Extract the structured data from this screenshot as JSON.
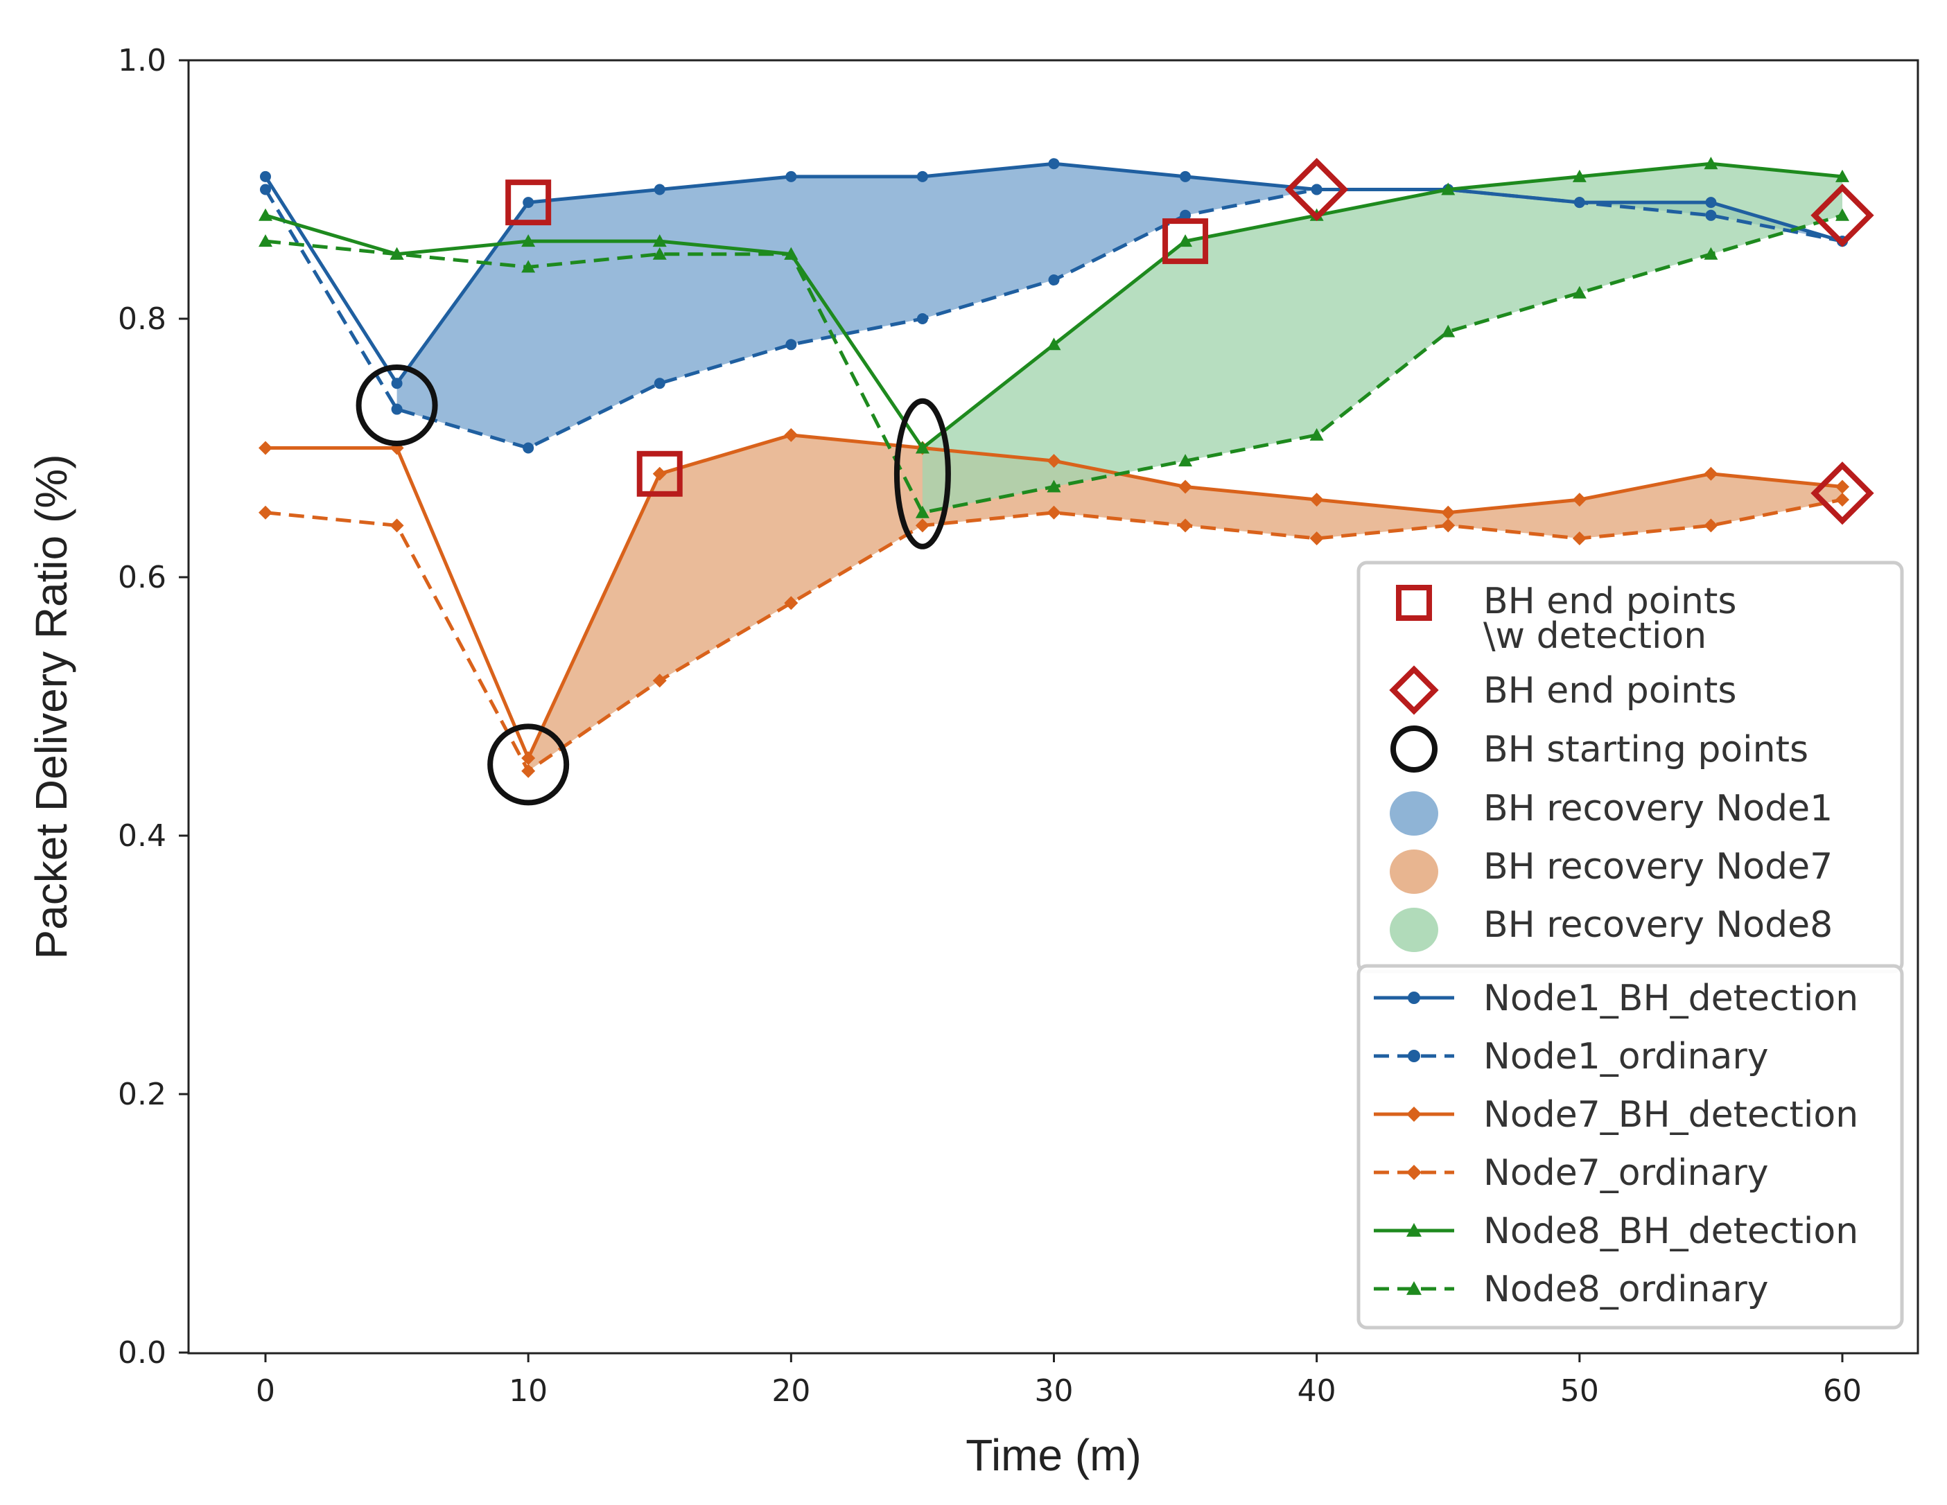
{
  "chart_data": {
    "type": "line",
    "title": "",
    "xlabel": "Time (m)",
    "ylabel": "Packet Delivery Ratio (%)",
    "xlim": [
      -3,
      63
    ],
    "ylim": [
      0.0,
      1.0
    ],
    "xticks": [
      0,
      10,
      20,
      30,
      40,
      50,
      60
    ],
    "yticks": [
      0.0,
      0.2,
      0.4,
      0.6,
      0.8,
      1.0
    ],
    "xtick_labels": [
      "0",
      "10",
      "20",
      "30",
      "40",
      "50",
      "60"
    ],
    "ytick_labels": [
      "0.0",
      "0.2",
      "0.4",
      "0.6",
      "0.8",
      "1.0"
    ],
    "grid": false,
    "legend_position": "lower-right",
    "x": [
      0,
      5,
      10,
      15,
      20,
      25,
      30,
      35,
      40,
      45,
      50,
      55,
      60
    ],
    "series": [
      {
        "name": "Node1_BH_detection",
        "color": "#1f5fa0",
        "style": "solid",
        "marker": "circle",
        "values": [
          0.91,
          0.75,
          0.89,
          0.9,
          0.91,
          0.91,
          0.92,
          0.91,
          0.9,
          0.9,
          0.89,
          0.89,
          0.86
        ]
      },
      {
        "name": "Node1_ordinary",
        "color": "#1f5fa0",
        "style": "dashed",
        "marker": "circle",
        "values": [
          0.9,
          0.73,
          0.7,
          0.75,
          0.78,
          0.8,
          0.83,
          0.88,
          0.9,
          0.9,
          0.89,
          0.88,
          0.86
        ]
      },
      {
        "name": "Node7_BH_detection",
        "color": "#d9621b",
        "style": "solid",
        "marker": "diamond",
        "values": [
          0.7,
          0.7,
          0.46,
          0.68,
          0.71,
          0.7,
          0.69,
          0.67,
          0.66,
          0.65,
          0.66,
          0.68,
          0.67
        ]
      },
      {
        "name": "Node7_ordinary",
        "color": "#d9621b",
        "style": "dashed",
        "marker": "diamond",
        "values": [
          0.65,
          0.64,
          0.45,
          0.52,
          0.58,
          0.64,
          0.65,
          0.64,
          0.63,
          0.64,
          0.63,
          0.64,
          0.66
        ]
      },
      {
        "name": "Node8_BH_detection",
        "color": "#1e8a1e",
        "style": "solid",
        "marker": "triangle",
        "values": [
          0.88,
          0.85,
          0.86,
          0.86,
          0.85,
          0.7,
          0.78,
          0.86,
          0.88,
          0.9,
          0.91,
          0.92,
          0.91
        ]
      },
      {
        "name": "Node8_ordinary",
        "color": "#1e8a1e",
        "style": "dashed",
        "marker": "triangle",
        "values": [
          0.86,
          0.85,
          0.84,
          0.85,
          0.85,
          0.65,
          0.67,
          0.69,
          0.71,
          0.79,
          0.82,
          0.85,
          0.88
        ]
      }
    ],
    "recovery_regions": [
      {
        "name": "BH recovery Node1",
        "color": "#7ba7cf",
        "x_start": 5,
        "x_end": 60,
        "upper_series": "Node1_BH_detection",
        "lower_series": "Node1_ordinary"
      },
      {
        "name": "BH recovery Node7",
        "color": "#e4a87c",
        "x_start": 10,
        "x_end": 60,
        "upper_series": "Node7_BH_detection",
        "lower_series": "Node7_ordinary"
      },
      {
        "name": "BH recovery Node8",
        "color": "#a3d5ae",
        "x_start": 25,
        "x_end": 60,
        "upper_series": "Node8_BH_detection",
        "lower_series": "Node8_ordinary"
      }
    ],
    "annotations": {
      "end_points_with_detection": {
        "label": "BH end points\n\\w detection",
        "marker": "square",
        "color": "#b81c1c",
        "points": [
          [
            10,
            0.89
          ],
          [
            15,
            0.68
          ],
          [
            35,
            0.86
          ]
        ]
      },
      "end_points": {
        "label": "BH end points",
        "marker": "diamond",
        "color": "#b81c1c",
        "points": [
          [
            40,
            0.9
          ],
          [
            60,
            0.88
          ],
          [
            60,
            0.665
          ]
        ]
      },
      "starting_points": {
        "label": "BH starting points",
        "marker": "circle",
        "color": "#111111",
        "points": [
          [
            5,
            0.733
          ],
          [
            10,
            0.455
          ],
          [
            25,
            0.68
          ]
        ]
      }
    },
    "legend_patch_labels": [
      "BH end points",
      "\\w detection",
      "BH end points",
      "BH starting points",
      "BH recovery Node1",
      "BH recovery Node7",
      "BH recovery Node8"
    ]
  }
}
